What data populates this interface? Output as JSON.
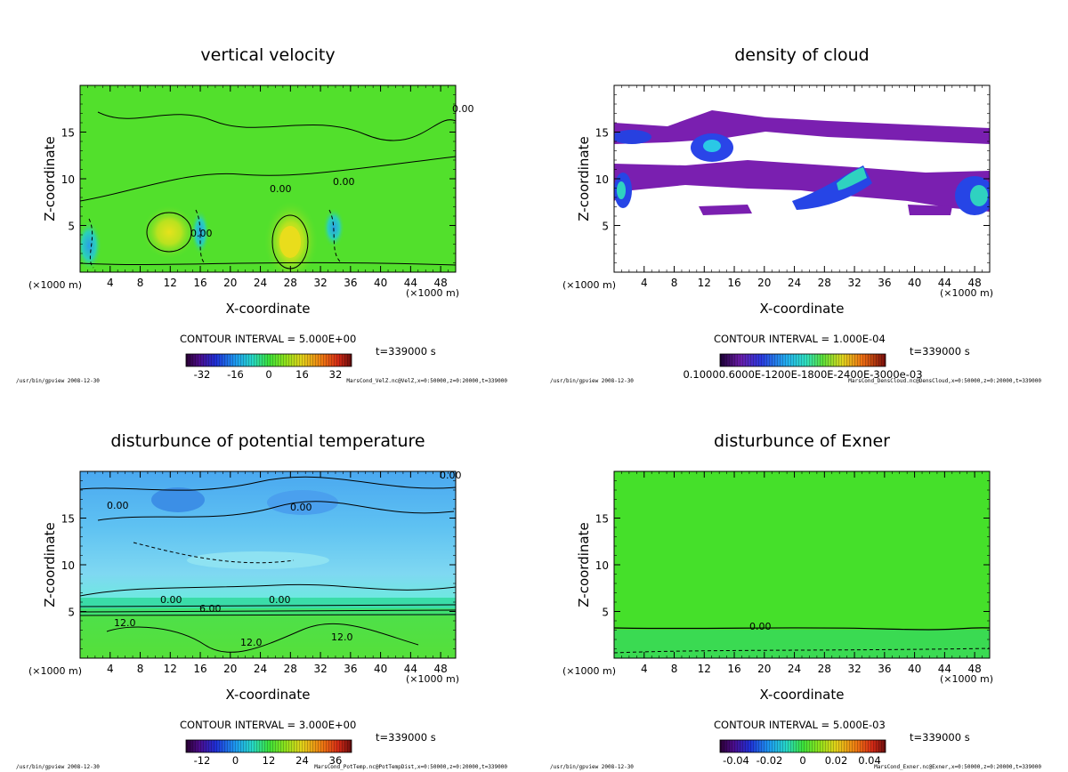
{
  "window": {
    "footer_program": "/usr/bin/gpview",
    "footer_date": "2008-12-30"
  },
  "colors": {
    "frame": "#000000",
    "background": "#ffffff"
  },
  "chart_data": [
    {
      "type": "heatmap",
      "id": "velz",
      "title": "vertical velocity",
      "xlabel": "X-coordinate",
      "ylabel": "Z-coordinate",
      "x_unit": "(×1000 m)",
      "xlim": [
        0,
        50
      ],
      "ylim": [
        0,
        20
      ],
      "xticks": [
        "4",
        "8",
        "12",
        "16",
        "20",
        "24",
        "28",
        "32",
        "36",
        "40",
        "44",
        "48"
      ],
      "yticks": [
        "5",
        "10",
        "15"
      ],
      "contour_interval": "CONTOUR INTERVAL = 5.000E+00",
      "time": "t=339000 s",
      "colorbar_ticks": [
        "-32",
        "-16",
        "0",
        "16",
        "32"
      ],
      "footer_source": "MarsCond_VelZ.nc@VelZ,x=0:50000,z=0:20000,t=339000",
      "contour_labels": [
        "0.00",
        "0.00",
        "0.00",
        "0.00"
      ],
      "colormap": "rainbow"
    },
    {
      "type": "heatmap",
      "id": "denscloud",
      "title": "density of cloud",
      "xlabel": "X-coordinate",
      "ylabel": "Z-coordinate",
      "x_unit": "(×1000 m)",
      "xlim": [
        0,
        50
      ],
      "ylim": [
        0,
        20
      ],
      "xticks": [
        "4",
        "8",
        "12",
        "16",
        "20",
        "24",
        "28",
        "32",
        "36",
        "40",
        "44",
        "48"
      ],
      "yticks": [
        "5",
        "10",
        "15"
      ],
      "contour_interval": "CONTOUR INTERVAL = 1.000E-04",
      "time": "t=339000 s",
      "colorbar_ticks": [
        "0.10000.6000E-1200E-1800E-2400E-3000e-03"
      ],
      "footer_source": "MarsCond_DensCloud.nc@DensCloud,x=0:50000,z=0:20000,t=339000",
      "contour_labels": [],
      "colormap": "cloud"
    },
    {
      "type": "heatmap",
      "id": "pottemp",
      "title": "disturbunce of potential temperature",
      "xlabel": "X-coordinate",
      "ylabel": "Z-coordinate",
      "x_unit": "(×1000 m)",
      "xlim": [
        0,
        50
      ],
      "ylim": [
        0,
        20
      ],
      "xticks": [
        "4",
        "8",
        "12",
        "16",
        "20",
        "24",
        "28",
        "32",
        "36",
        "40",
        "44",
        "48"
      ],
      "yticks": [
        "5",
        "10",
        "15"
      ],
      "contour_interval": "CONTOUR INTERVAL = 3.000E+00",
      "time": "t=339000 s",
      "colorbar_ticks": [
        "-12",
        "0",
        "12",
        "24",
        "36"
      ],
      "footer_source": "MarsCond_PotTemp.nc@PotTempDist,x=0:50000,z=0:20000,t=339000",
      "contour_labels": [
        "0.00",
        "0.00",
        "0.00",
        "0.00",
        "6.00",
        "12.0",
        "12.0",
        "12.0",
        "0.00"
      ],
      "colormap": "rainbow"
    },
    {
      "type": "heatmap",
      "id": "exner",
      "title": "disturbunce of Exner",
      "xlabel": "X-coordinate",
      "ylabel": "Z-coordinate",
      "x_unit": "(×1000 m)",
      "xlim": [
        0,
        50
      ],
      "ylim": [
        0,
        20
      ],
      "xticks": [
        "4",
        "8",
        "12",
        "16",
        "20",
        "24",
        "28",
        "32",
        "36",
        "40",
        "44",
        "48"
      ],
      "yticks": [
        "5",
        "10",
        "15"
      ],
      "contour_interval": "CONTOUR INTERVAL = 5.000E-03",
      "time": "t=339000 s",
      "colorbar_ticks": [
        "-0.04",
        "-0.02",
        "0",
        "0.02",
        "0.04"
      ],
      "footer_source": "MarsCond_Exner.nc@Exner,x=0:50000,z=0:20000,t=339000",
      "contour_labels": [
        "0.00"
      ],
      "colormap": "rainbow"
    }
  ]
}
